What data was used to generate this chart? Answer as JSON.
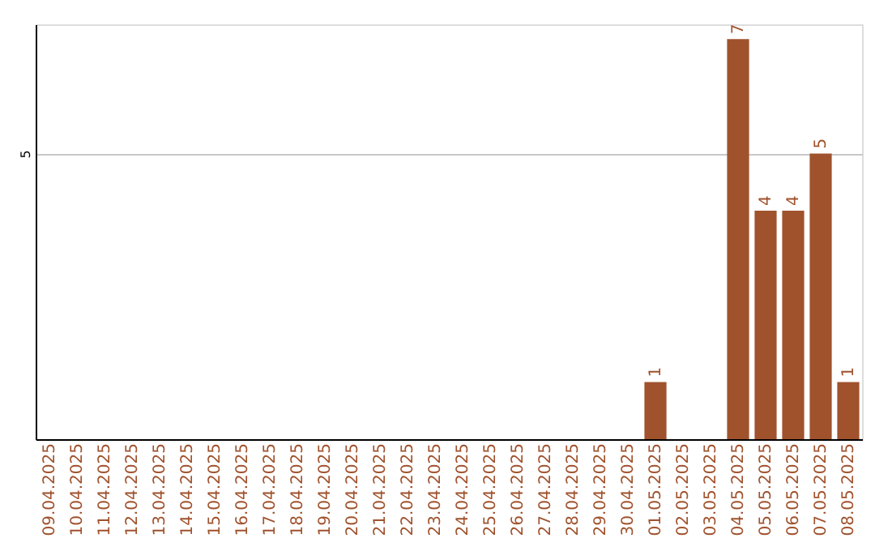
{
  "chart_data": {
    "type": "bar",
    "categories": [
      "09.04.2025",
      "10.04.2025",
      "11.04.2025",
      "12.04.2025",
      "13.04.2025",
      "14.04.2025",
      "15.04.2025",
      "16.04.2025",
      "17.04.2025",
      "18.04.2025",
      "19.04.2025",
      "20.04.2025",
      "21.04.2025",
      "22.04.2025",
      "23.04.2025",
      "24.04.2025",
      "25.04.2025",
      "26.04.2025",
      "27.04.2025",
      "28.04.2025",
      "29.04.2025",
      "30.04.2025",
      "01.05.2025",
      "02.05.2025",
      "03.05.2025",
      "04.05.2025",
      "05.05.2025",
      "06.05.2025",
      "07.05.2025",
      "08.05.2025"
    ],
    "values": [
      null,
      null,
      null,
      null,
      null,
      null,
      null,
      null,
      null,
      null,
      null,
      null,
      null,
      null,
      null,
      null,
      null,
      null,
      null,
      null,
      null,
      null,
      1,
      null,
      null,
      7,
      4,
      4,
      5,
      1
    ],
    "data_labels": true,
    "color": "#a0522d",
    "ylim": [
      0,
      7.26
    ],
    "yticks": [
      5
    ],
    "grid": "y"
  }
}
